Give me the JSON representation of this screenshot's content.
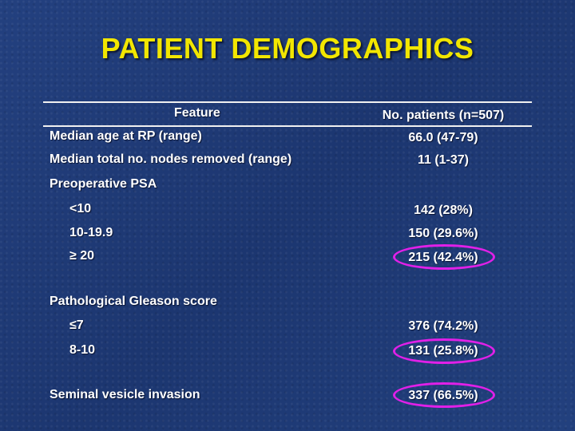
{
  "title": "PATIENT DEMOGRAPHICS",
  "header": {
    "feature": "Feature",
    "patients": "No. patients (n=507)"
  },
  "rows": [
    {
      "label": "Median age at RP (range)",
      "value": "66.0 (47-79)"
    },
    {
      "label": "Median total no. nodes removed (range)",
      "value": "11 (1-37)"
    },
    {
      "label": "Preoperative PSA",
      "value": ""
    },
    {
      "label": "<10",
      "value": "142 (28%)"
    },
    {
      "label": "10-19.9",
      "value": "150 (29.6%)"
    },
    {
      "label": "≥ 20",
      "value": "215 (42.4%)",
      "highlighted": true
    },
    {
      "label": "Pathological Gleason score",
      "value": ""
    },
    {
      "label": "≤7",
      "value": "376 (74.2%)"
    },
    {
      "label": "8-10",
      "value": "131 (25.8%)",
      "highlighted": true
    },
    {
      "label": "Seminal vesicle invasion",
      "value": "337 (66.5%)",
      "highlighted": true
    }
  ],
  "colors": {
    "background": "#1f3a78",
    "title": "#f2e600",
    "highlight": "#e020e8",
    "text": "#ffffff"
  }
}
